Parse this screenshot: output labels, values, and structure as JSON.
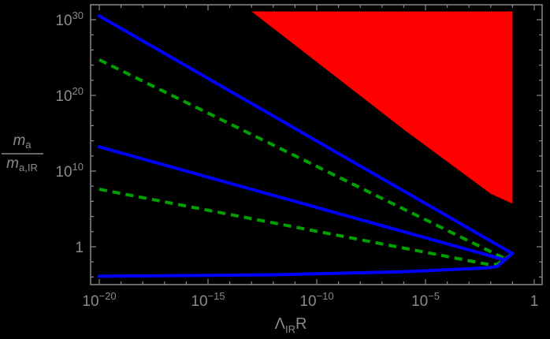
{
  "chart_data": {
    "type": "line",
    "title": "",
    "xlabel": "Λ_IR R",
    "ylabel": "m_a / m_a,IR",
    "x_scale": "log",
    "y_scale": "log",
    "xlim_log10": [
      -20.4,
      0.35
    ],
    "ylim_log10": [
      -5.0,
      31.1
    ],
    "x_ticks": [
      {
        "log10": -20,
        "base": "10",
        "exp": "−20"
      },
      {
        "log10": -15,
        "base": "10",
        "exp": "−15"
      },
      {
        "log10": -10,
        "base": "10",
        "exp": "−10"
      },
      {
        "log10": -5,
        "base": "10",
        "exp": "−5"
      },
      {
        "log10": 0,
        "base": "1",
        "exp": ""
      }
    ],
    "y_ticks": [
      {
        "log10": 30,
        "base": "10",
        "exp": "30"
      },
      {
        "log10": 20,
        "base": "10",
        "exp": "20"
      },
      {
        "log10": 10,
        "base": "10",
        "exp": "10"
      },
      {
        "log10": 0,
        "base": "1",
        "exp": ""
      }
    ],
    "grid": false,
    "legend": "none",
    "background": "#000000",
    "series": [
      {
        "name": "blue-upper",
        "color": "#0000ff",
        "style": "solid",
        "points_log10": [
          [
            -20,
            30.5
          ],
          [
            -1.0,
            -0.9
          ]
        ]
      },
      {
        "name": "green-upper",
        "color": "#00a000",
        "style": "dashed",
        "points_log10": [
          [
            -20,
            24.7
          ],
          [
            -1.4,
            -1.5
          ]
        ]
      },
      {
        "name": "blue-middle",
        "color": "#0000ff",
        "style": "solid",
        "points_log10": [
          [
            -20,
            13.2
          ],
          [
            -1.4,
            -1.7
          ]
        ]
      },
      {
        "name": "green-lower",
        "color": "#00a000",
        "style": "dashed",
        "points_log10": [
          [
            -20,
            7.6
          ],
          [
            -2.0,
            -2.4
          ],
          [
            -1.7,
            -2.3
          ],
          [
            -1.0,
            -0.9
          ]
        ]
      },
      {
        "name": "blue-lower",
        "color": "#0000ff",
        "style": "solid",
        "points_log10": [
          [
            -20,
            -3.9
          ],
          [
            -12,
            -3.7
          ],
          [
            -6,
            -3.3
          ],
          [
            -2.2,
            -2.8
          ],
          [
            -1.7,
            -2.6
          ],
          [
            -1.0,
            -0.9
          ]
        ]
      }
    ],
    "regions": [
      {
        "name": "excluded-region",
        "color": "#ff0000",
        "polygon_log10": [
          [
            -13.0,
            31.1
          ],
          [
            -1.0,
            31.1
          ],
          [
            -1.0,
            5.7
          ],
          [
            -2.0,
            7.0
          ],
          [
            -6,
            15.5
          ],
          [
            -13.0,
            31.1
          ]
        ]
      }
    ]
  }
}
